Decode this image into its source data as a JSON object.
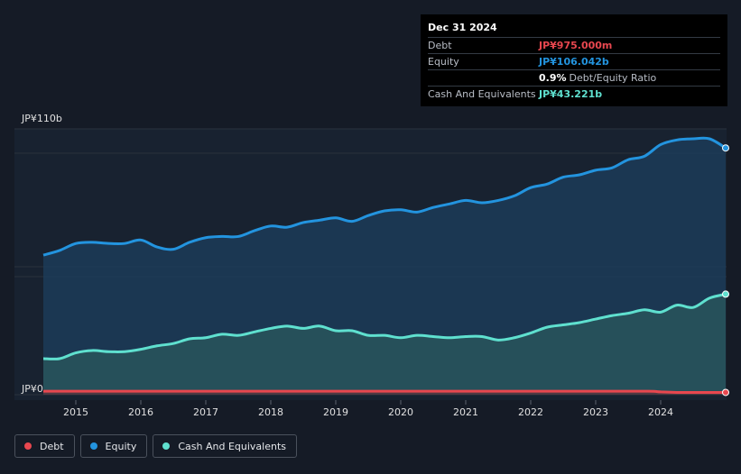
{
  "tooltip": {
    "date": "Dec 31 2024",
    "debt_label": "Debt",
    "debt_value": "JP¥975.000m",
    "equity_label": "Equity",
    "equity_value": "JP¥106.042b",
    "ratio_value": "0.9%",
    "ratio_label": "Debt/Equity Ratio",
    "cash_label": "Cash And Equivalents",
    "cash_value": "JP¥43.221b"
  },
  "colors": {
    "debt": "#e8474f",
    "equity": "#2394df",
    "cash": "#5fe0cf",
    "grid": "#2a313d",
    "axis_text": "#e0e0e0"
  },
  "legend": [
    {
      "name": "Debt",
      "color": "#e8474f"
    },
    {
      "name": "Equity",
      "color": "#2394df"
    },
    {
      "name": "Cash And Equivalents",
      "color": "#5fe0cf"
    }
  ],
  "chart_data": {
    "type": "area",
    "title": "",
    "xlabel": "",
    "ylabel": "",
    "y_tick_labels": [
      "JP¥0",
      "JP¥110b"
    ],
    "ylim": [
      0,
      110
    ],
    "xlim": [
      2014.5,
      2025.0
    ],
    "x_ticks": [
      "2015",
      "2016",
      "2017",
      "2018",
      "2019",
      "2020",
      "2021",
      "2022",
      "2023",
      "2024"
    ],
    "x_tick_values": [
      2015,
      2016,
      2017,
      2018,
      2019,
      2020,
      2021,
      2022,
      2023,
      2024
    ],
    "units": "JP¥ billions",
    "series": [
      {
        "name": "Equity",
        "x": [
          2014.5,
          2014.75,
          2015.0,
          2015.25,
          2015.5,
          2015.75,
          2016.0,
          2016.25,
          2016.5,
          2016.75,
          2017.0,
          2017.25,
          2017.5,
          2017.75,
          2018.0,
          2018.25,
          2018.5,
          2018.75,
          2019.0,
          2019.25,
          2019.5,
          2019.75,
          2020.0,
          2020.25,
          2020.5,
          2020.75,
          2021.0,
          2021.25,
          2021.5,
          2021.75,
          2022.0,
          2022.25,
          2022.5,
          2022.75,
          2023.0,
          2023.25,
          2023.5,
          2023.75,
          2024.0,
          2024.25,
          2024.5,
          2024.75,
          2025.0
        ],
        "values": [
          60.0,
          62.0,
          65.0,
          65.5,
          65.0,
          65.0,
          66.5,
          63.5,
          62.5,
          65.5,
          67.5,
          68.0,
          68.0,
          70.5,
          72.5,
          72.0,
          74.0,
          75.0,
          76.0,
          74.5,
          77.0,
          79.0,
          79.5,
          78.5,
          80.5,
          82.0,
          83.5,
          82.5,
          83.5,
          85.5,
          89.0,
          90.5,
          93.5,
          94.5,
          96.5,
          97.5,
          101.0,
          102.5,
          107.5,
          109.5,
          110.0,
          110.0,
          106.042
        ]
      },
      {
        "name": "Cash And Equivalents",
        "x": [
          2014.5,
          2014.75,
          2015.0,
          2015.25,
          2015.5,
          2015.75,
          2016.0,
          2016.25,
          2016.5,
          2016.75,
          2017.0,
          2017.25,
          2017.5,
          2017.75,
          2018.0,
          2018.25,
          2018.5,
          2018.75,
          2019.0,
          2019.25,
          2019.5,
          2019.75,
          2020.0,
          2020.25,
          2020.5,
          2020.75,
          2021.0,
          2021.25,
          2021.5,
          2021.75,
          2022.0,
          2022.25,
          2022.5,
          2022.75,
          2023.0,
          2023.25,
          2023.5,
          2023.75,
          2024.0,
          2024.25,
          2024.5,
          2024.75,
          2025.0
        ],
        "values": [
          15.5,
          15.5,
          18.0,
          19.0,
          18.5,
          18.5,
          19.5,
          21.0,
          22.0,
          24.0,
          24.5,
          26.0,
          25.5,
          27.0,
          28.5,
          29.5,
          28.5,
          29.5,
          27.5,
          27.5,
          25.5,
          25.5,
          24.5,
          25.5,
          25.0,
          24.5,
          25.0,
          25.0,
          23.5,
          24.5,
          26.5,
          29.0,
          30.0,
          31.0,
          32.5,
          34.0,
          35.0,
          36.5,
          35.5,
          38.5,
          37.5,
          41.5,
          43.221
        ]
      },
      {
        "name": "Debt",
        "x": [
          2014.5,
          2015.0,
          2016.0,
          2017.0,
          2018.0,
          2019.0,
          2020.0,
          2021.0,
          2022.0,
          2023.0,
          2023.8,
          2024.0,
          2024.25,
          2024.75,
          2025.0
        ],
        "values": [
          1.5,
          1.5,
          1.5,
          1.5,
          1.5,
          1.5,
          1.5,
          1.5,
          1.5,
          1.5,
          1.5,
          1.2,
          0.975,
          0.975,
          0.975
        ]
      }
    ]
  }
}
